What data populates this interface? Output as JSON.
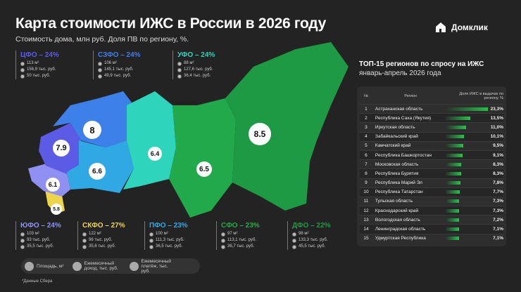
{
  "header": {
    "title": "Карта стоимости ИЖС в России в 2026 году",
    "subtitle": "Стоимость дома, млн руб. Доля ПВ по региону, %.",
    "logo": "Домклик"
  },
  "colors": {
    "cfo": "#5b5be6",
    "szfo": "#3e80ea",
    "ufo": "#2fd4bd",
    "pfo": "#30a8e3",
    "sfo": "#22a94c",
    "dfo": "#1e9a44",
    "yufo": "#9090f2",
    "skfo": "#ecd44c",
    "bar": "#26c24a"
  },
  "districts": [
    {
      "key": "cfo",
      "name": "ЦФО – 24%",
      "area": "113 м²",
      "income": "156,9 тыс. руб.",
      "payment": "50 тыс. руб.",
      "price": "7.9"
    },
    {
      "key": "szfo",
      "name": "СЗФО – 24%",
      "area": "106 м²",
      "income": "145,1 тыс. руб.",
      "payment": "49,9 тыс. руб.",
      "price": "8"
    },
    {
      "key": "ufo",
      "name": "УФО – 24%",
      "area": "88 м²",
      "income": "127,6 тыс. руб.",
      "payment": "36,4 тыс. руб.",
      "price": "6.4"
    },
    {
      "key": "yufo",
      "name": "ЮФО – 24%",
      "area": "103 м²",
      "income": "93 тыс. руб.",
      "payment": "35,5 тыс. руб.",
      "price": "6.1"
    },
    {
      "key": "skfo",
      "name": "СКФО – 27%",
      "area": "122 м²",
      "income": "96 тыс. руб.",
      "payment": "35,6 тыс. руб.",
      "price": "5.8"
    },
    {
      "key": "pfo",
      "name": "ПФО – 23%",
      "area": "100 м²",
      "income": "111,3 тыс. руб.",
      "payment": "36,5 тыс. руб.",
      "price": "6.6"
    },
    {
      "key": "sfo",
      "name": "СФО – 23%",
      "area": "97 м²",
      "income": "113,1 тыс. руб.",
      "payment": "36,7 тыс. руб.",
      "price": "6.5"
    },
    {
      "key": "dfo",
      "name": "ДФО – 22%",
      "area": "98 м²",
      "income": "133,3 тыс. руб.",
      "payment": "45,5 тыс. руб.",
      "price": "8.5"
    }
  ],
  "legend": {
    "area": "Площадь, м²",
    "income": "Ежемесячный доход, тыс. руб.",
    "payment": "Ежемесячный платёж, тыс. руб.",
    "note": "*Данные Сбера"
  },
  "top": {
    "title": "ТОП-15 регионов по спросу на ИЖС",
    "subtitle": "январь-апрель 2026 года",
    "col_num": "№",
    "col_region": "Регион",
    "col_share": "Доля ИЖС в выдачах по региону, %",
    "rows": [
      {
        "n": "1",
        "region": "Астраханская область",
        "value": 23.3,
        "label": "23,3%"
      },
      {
        "n": "2",
        "region": "Республика Саха (Якутия)",
        "value": 13.5,
        "label": "13,5%"
      },
      {
        "n": "3",
        "region": "Иркутская область",
        "value": 11.0,
        "label": "11,0%"
      },
      {
        "n": "4",
        "region": "Забайкальский край",
        "value": 10.1,
        "label": "10,1%"
      },
      {
        "n": "5",
        "region": "Камчатский край",
        "value": 9.5,
        "label": "9,5%"
      },
      {
        "n": "6",
        "region": "Республика Башкортостан",
        "value": 9.1,
        "label": "9,1%"
      },
      {
        "n": "7",
        "region": "Московская область",
        "value": 8.3,
        "label": "8,3%"
      },
      {
        "n": "8",
        "region": "Республика Бурятия",
        "value": 8.3,
        "label": "8,3%"
      },
      {
        "n": "9",
        "region": "Республика Марий Эл",
        "value": 7.8,
        "label": "7,8%"
      },
      {
        "n": "10",
        "region": "Республика Татарстан",
        "value": 7.7,
        "label": "7,7%"
      },
      {
        "n": "11",
        "region": "Тульская область",
        "value": 7.3,
        "label": "7,3%"
      },
      {
        "n": "12",
        "region": "Краснодарский край",
        "value": 7.3,
        "label": "7,3%"
      },
      {
        "n": "13",
        "region": "Вологодская область",
        "value": 7.2,
        "label": "7,2%"
      },
      {
        "n": "14",
        "region": "Ленинградская область",
        "value": 7.1,
        "label": "7,1%"
      },
      {
        "n": "15",
        "region": "Удмуртская Республика",
        "value": 7.1,
        "label": "7,1%"
      }
    ]
  }
}
